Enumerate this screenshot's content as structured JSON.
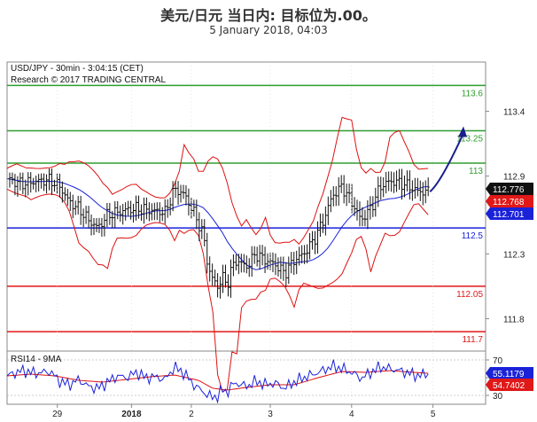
{
  "header": {
    "title": "美元/日元 当日内: 目标位为.00。",
    "subtitle": "5 January 2018, 04:03"
  },
  "chart_data": {
    "type": "candlestick",
    "instrument_label": "USD/JPY - 30min - 3:04:15 (CET)",
    "research_label": "Research © 2017 TRADING CENTRAL",
    "y_range": [
      111.55,
      113.78
    ],
    "y_ticks": [
      111.8,
      112.3,
      112.9,
      113.4
    ],
    "y_tick_labels": [
      "111.8",
      "112.3",
      "112.9",
      "113.4"
    ],
    "x_tick_labels": [
      "29",
      "2018",
      "2",
      "3",
      "4",
      "5"
    ],
    "levels": [
      {
        "value": 113.6,
        "label": "113.6",
        "color": "#2e9e2e"
      },
      {
        "value": 113.25,
        "label": "113.25",
        "color": "#2e9e2e"
      },
      {
        "value": 113.0,
        "label": "113",
        "color": "#2e9e2e"
      },
      {
        "value": 112.5,
        "label": "112.5",
        "color": "#1a22d8"
      },
      {
        "value": 112.05,
        "label": "112.05",
        "color": "#e01818"
      },
      {
        "value": 111.7,
        "label": "111.7",
        "color": "#e01818"
      }
    ],
    "price_tags": [
      {
        "value": 112.776,
        "label": "112.776",
        "bg": "#111111",
        "fg": "#ffffff"
      },
      {
        "value": 112.768,
        "label": "112.768",
        "bg": "#e01818",
        "fg": "#ffffff"
      },
      {
        "value": 112.701,
        "label": "112.701",
        "bg": "#1a22d8",
        "fg": "#ffffff"
      }
    ],
    "forecast_arrow": {
      "from": 112.78,
      "to": 113.27,
      "color": "#1a1f8c"
    },
    "price_points": [
      [
        0,
        112.88
      ],
      [
        3,
        112.84
      ],
      [
        6,
        112.86
      ],
      [
        9,
        112.87
      ],
      [
        11,
        112.82
      ],
      [
        13,
        112.7
      ],
      [
        15,
        112.65
      ],
      [
        17,
        112.56
      ],
      [
        19,
        112.5
      ],
      [
        21,
        112.6
      ],
      [
        23,
        112.62
      ],
      [
        25,
        112.64
      ],
      [
        27,
        112.65
      ],
      [
        29,
        112.64
      ],
      [
        31,
        112.63
      ],
      [
        33,
        112.62
      ],
      [
        35,
        112.8
      ],
      [
        37,
        112.76
      ],
      [
        39,
        112.62
      ],
      [
        41,
        112.45
      ],
      [
        42,
        112.2
      ],
      [
        43,
        112.1
      ],
      [
        44,
        112.05
      ],
      [
        45,
        112.12
      ],
      [
        46,
        112.06
      ],
      [
        47,
        112.2
      ],
      [
        48,
        112.25
      ],
      [
        50,
        112.2
      ],
      [
        52,
        112.3
      ],
      [
        54,
        112.25
      ],
      [
        56,
        112.22
      ],
      [
        58,
        112.15
      ],
      [
        60,
        112.25
      ],
      [
        62,
        112.3
      ],
      [
        64,
        112.4
      ],
      [
        66,
        112.55
      ],
      [
        68,
        112.75
      ],
      [
        70,
        112.82
      ],
      [
        72,
        112.7
      ],
      [
        74,
        112.56
      ],
      [
        76,
        112.65
      ],
      [
        78,
        112.82
      ],
      [
        80,
        112.86
      ],
      [
        82,
        112.85
      ],
      [
        84,
        112.82
      ],
      [
        86,
        112.78
      ],
      [
        88,
        112.78
      ]
    ],
    "x_index_range": [
      0,
      100
    ],
    "rsi": {
      "label": "RSI14 - 9MA",
      "y_range": [
        20,
        80
      ],
      "y_ticks": [
        30,
        50,
        70
      ],
      "value_tags": [
        {
          "value": 55.1179,
          "label": "55.1179",
          "bg": "#1a22d8"
        },
        {
          "value": 54.7402,
          "label": "54.7402",
          "bg": "#e01818"
        }
      ],
      "rsi_points": [
        [
          0,
          52
        ],
        [
          3,
          58
        ],
        [
          6,
          55
        ],
        [
          9,
          57
        ],
        [
          11,
          46
        ],
        [
          13,
          42
        ],
        [
          15,
          48
        ],
        [
          17,
          40
        ],
        [
          19,
          38
        ],
        [
          21,
          45
        ],
        [
          23,
          52
        ],
        [
          25,
          50
        ],
        [
          27,
          56
        ],
        [
          29,
          50
        ],
        [
          31,
          51
        ],
        [
          33,
          48
        ],
        [
          35,
          62
        ],
        [
          37,
          55
        ],
        [
          39,
          42
        ],
        [
          41,
          34
        ],
        [
          42,
          30
        ],
        [
          43,
          28
        ],
        [
          44,
          29
        ],
        [
          45,
          37
        ],
        [
          46,
          33
        ],
        [
          47,
          42
        ],
        [
          48,
          44
        ],
        [
          50,
          40
        ],
        [
          52,
          46
        ],
        [
          54,
          42
        ],
        [
          56,
          44
        ],
        [
          58,
          38
        ],
        [
          60,
          45
        ],
        [
          62,
          50
        ],
        [
          64,
          54
        ],
        [
          66,
          58
        ],
        [
          68,
          63
        ],
        [
          70,
          60
        ],
        [
          72,
          56
        ],
        [
          74,
          49
        ],
        [
          76,
          56
        ],
        [
          78,
          62
        ],
        [
          80,
          60
        ],
        [
          82,
          58
        ],
        [
          84,
          55
        ],
        [
          86,
          52
        ],
        [
          88,
          55
        ]
      ],
      "ma_points": [
        [
          0,
          52
        ],
        [
          5,
          54
        ],
        [
          10,
          52
        ],
        [
          15,
          47
        ],
        [
          20,
          45
        ],
        [
          25,
          48
        ],
        [
          30,
          51
        ],
        [
          35,
          53
        ],
        [
          40,
          47
        ],
        [
          43,
          38
        ],
        [
          46,
          36
        ],
        [
          50,
          39
        ],
        [
          55,
          42
        ],
        [
          60,
          42
        ],
        [
          65,
          50
        ],
        [
          70,
          57
        ],
        [
          75,
          56
        ],
        [
          80,
          58
        ],
        [
          85,
          56
        ],
        [
          88,
          55
        ]
      ]
    }
  }
}
